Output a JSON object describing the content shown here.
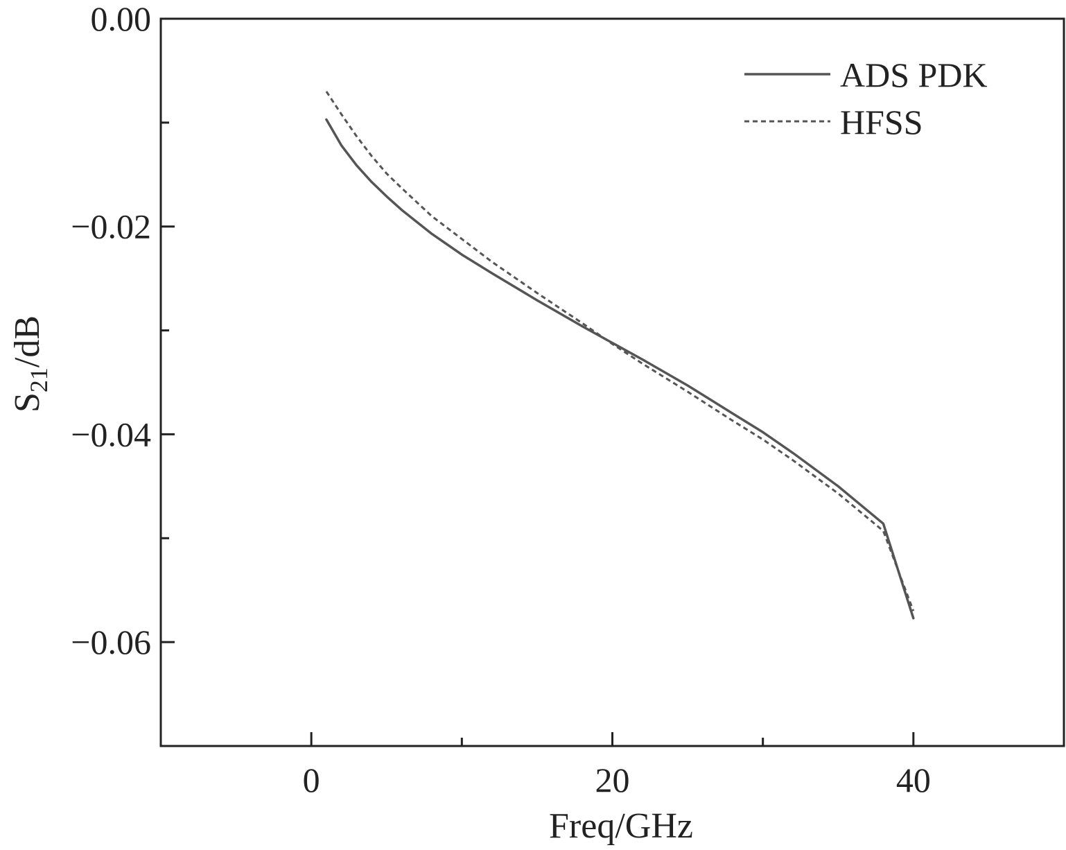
{
  "chart_data": {
    "type": "line",
    "xlabel": "Freq/GHz",
    "ylabel_main": "S",
    "ylabel_sub": "21",
    "ylabel_unit": "/dB",
    "xlim": [
      -10,
      50
    ],
    "ylim": [
      -0.07,
      0.0
    ],
    "x_ticks": [
      0,
      20,
      40
    ],
    "x_tick_labels": [
      "0",
      "20",
      "40"
    ],
    "x_minor_ticks": [
      10,
      30
    ],
    "y_ticks": [
      0.0,
      -0.02,
      -0.04,
      -0.06
    ],
    "y_tick_labels": [
      "0.00",
      "−0.02",
      "−0.04",
      "−0.06"
    ],
    "y_minor_ticks": [
      -0.01,
      -0.03,
      -0.05
    ],
    "grid": false,
    "legend_position": "top-right",
    "line_color": "#555555",
    "series": [
      {
        "name": "ADS PDK",
        "style": "solid",
        "x": [
          1,
          2,
          3,
          4,
          5,
          6,
          8,
          10,
          12,
          15,
          18,
          20,
          22,
          25,
          28,
          30,
          32,
          35,
          38,
          40
        ],
        "y": [
          -0.0097,
          -0.0122,
          -0.0141,
          -0.0157,
          -0.0171,
          -0.0184,
          -0.0207,
          -0.0227,
          -0.0245,
          -0.0271,
          -0.0296,
          -0.0312,
          -0.0328,
          -0.0353,
          -0.038,
          -0.0398,
          -0.0418,
          -0.045,
          -0.0486,
          -0.0577
        ]
      },
      {
        "name": "HFSS",
        "style": "dashed",
        "x": [
          1,
          2,
          3,
          4,
          5,
          6,
          8,
          10,
          12,
          15,
          18,
          20,
          22,
          25,
          28,
          30,
          32,
          35,
          38,
          40
        ],
        "y": [
          -0.007,
          -0.0092,
          -0.0113,
          -0.0132,
          -0.0149,
          -0.0163,
          -0.019,
          -0.0212,
          -0.0234,
          -0.0264,
          -0.0293,
          -0.0313,
          -0.0332,
          -0.0359,
          -0.0387,
          -0.0405,
          -0.0425,
          -0.0457,
          -0.0493,
          -0.057
        ]
      }
    ]
  }
}
